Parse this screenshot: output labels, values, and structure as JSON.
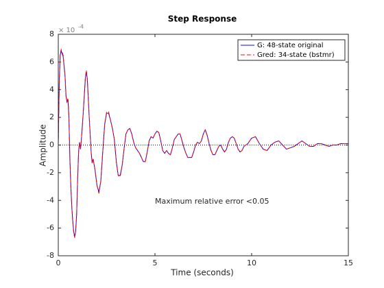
{
  "chart_data": {
    "type": "line",
    "title": "Step Response",
    "x_label": "Time (seconds)",
    "y_label": "Amplitude",
    "y_multiplier": "× 10",
    "y_exponent": "-4",
    "annotation": "Maximum relative error <0.05",
    "xlim": [
      0,
      15
    ],
    "xticks": [
      0,
      5,
      10,
      15
    ],
    "ylim": [
      -8,
      8
    ],
    "yticks": [
      -8,
      -6,
      -4,
      -2,
      0,
      2,
      4,
      6,
      8
    ],
    "zero_line": true,
    "legend": "northeast",
    "x": [
      0,
      0.05,
      0.1,
      0.15,
      0.25,
      0.35,
      0.4,
      0.45,
      0.5,
      0.55,
      0.6,
      0.65,
      0.7,
      0.75,
      0.8,
      0.85,
      0.9,
      0.95,
      1.0,
      1.05,
      1.1,
      1.15,
      1.2,
      1.3,
      1.4,
      1.45,
      1.5,
      1.6,
      1.7,
      1.75,
      1.8,
      1.9,
      2.0,
      2.1,
      2.2,
      2.3,
      2.4,
      2.5,
      2.6,
      2.7,
      2.8,
      2.9,
      3.0,
      3.1,
      3.2,
      3.3,
      3.4,
      3.5,
      3.6,
      3.7,
      3.8,
      3.9,
      4.0,
      4.1,
      4.2,
      4.3,
      4.4,
      4.5,
      4.6,
      4.7,
      4.8,
      4.9,
      5.0,
      5.1,
      5.2,
      5.3,
      5.4,
      5.5,
      5.6,
      5.7,
      5.8,
      5.9,
      6.0,
      6.1,
      6.2,
      6.3,
      6.4,
      6.5,
      6.6,
      6.7,
      6.8,
      6.9,
      7.0,
      7.1,
      7.2,
      7.3,
      7.4,
      7.5,
      7.6,
      7.7,
      7.8,
      7.9,
      8.0,
      8.1,
      8.2,
      8.3,
      8.4,
      8.5,
      8.6,
      8.7,
      8.8,
      8.9,
      9.0,
      9.1,
      9.2,
      9.3,
      9.4,
      9.5,
      9.6,
      9.7,
      9.8,
      9.9,
      10.0,
      10.2,
      10.4,
      10.6,
      10.8,
      11.0,
      11.2,
      11.4,
      11.6,
      11.8,
      12.0,
      12.2,
      12.4,
      12.6,
      12.8,
      13.0,
      13.2,
      13.4,
      13.6,
      13.8,
      14.0,
      14.2,
      14.4,
      14.6,
      14.8,
      15.0
    ],
    "series": [
      {
        "name": "G: 48-state original",
        "color": "#0000ff",
        "linestyle": "solid",
        "values": [
          0,
          4.5,
          6.5,
          6.8,
          6.4,
          5.0,
          3.5,
          3.1,
          3.3,
          2.0,
          -1,
          -3,
          -4.5,
          -5.5,
          -6.3,
          -6.6,
          -6.2,
          -5,
          -2.5,
          -0.5,
          0.2,
          -0.3,
          0.5,
          2.5,
          4.8,
          5.3,
          4.8,
          2.0,
          -0.5,
          -1.3,
          -1.0,
          -1.8,
          -2.9,
          -3.4,
          -2.6,
          -0.5,
          1.5,
          2.3,
          2.3,
          1.8,
          1.2,
          0.4,
          -1.2,
          -2.2,
          -2.2,
          -1.5,
          -0.3,
          0.8,
          1.1,
          1.2,
          0.8,
          0.2,
          -0.2,
          -0.4,
          -0.6,
          -0.9,
          -1.2,
          -1.2,
          -0.5,
          0.3,
          0.6,
          0.5,
          0.8,
          1.0,
          0.9,
          0.3,
          -0.4,
          -0.6,
          -0.4,
          -0.6,
          -0.7,
          -0.2,
          0.4,
          0.6,
          0.8,
          0.8,
          0.3,
          -0.2,
          -0.6,
          -0.9,
          -0.9,
          -0.9,
          -0.5,
          0.0,
          0.2,
          0.1,
          0.3,
          0.8,
          1.1,
          0.7,
          0.1,
          -0.4,
          -0.7,
          -0.7,
          -0.4,
          -0.1,
          0.0,
          -0.3,
          -0.5,
          -0.3,
          0.2,
          0.5,
          0.6,
          0.5,
          0.1,
          -0.3,
          -0.5,
          -0.4,
          -0.1,
          0.0,
          0.1,
          0.3,
          0.5,
          0.6,
          0.1,
          -0.3,
          -0.4,
          0.0,
          0.2,
          0.3,
          0.0,
          -0.3,
          -0.2,
          -0.1,
          0.1,
          0.3,
          0.1,
          -0.1,
          -0.1,
          0.1,
          0.1,
          0.0,
          -0.1,
          0.0,
          0.0,
          0.1,
          0.1,
          0.1
        ]
      },
      {
        "name": "Gred: 34-state (bstmr)",
        "color": "#ff0000",
        "linestyle": "dashed",
        "values": [
          0,
          4.4,
          6.6,
          6.9,
          6.5,
          5.0,
          3.6,
          3.1,
          3.4,
          2.0,
          -1,
          -3,
          -4.5,
          -5.6,
          -6.4,
          -6.7,
          -6.2,
          -5,
          -2.5,
          -0.5,
          0.2,
          -0.3,
          0.5,
          2.6,
          4.9,
          5.4,
          4.8,
          2.0,
          -0.5,
          -1.3,
          -1.0,
          -1.8,
          -2.9,
          -3.5,
          -2.6,
          -0.5,
          1.5,
          2.4,
          2.4,
          1.8,
          1.2,
          0.4,
          -1.2,
          -2.2,
          -2.3,
          -1.5,
          -0.3,
          0.8,
          1.1,
          1.2,
          0.8,
          0.2,
          -0.2,
          -0.4,
          -0.6,
          -0.9,
          -1.2,
          -1.2,
          -0.5,
          0.3,
          0.6,
          0.5,
          0.8,
          1.0,
          0.9,
          0.3,
          -0.4,
          -0.6,
          -0.4,
          -0.6,
          -0.7,
          -0.2,
          0.4,
          0.6,
          0.8,
          0.8,
          0.3,
          -0.2,
          -0.6,
          -0.9,
          -0.9,
          -0.9,
          -0.5,
          0.0,
          0.2,
          0.1,
          0.3,
          0.8,
          1.1,
          0.7,
          0.1,
          -0.4,
          -0.7,
          -0.7,
          -0.4,
          -0.1,
          0.0,
          -0.3,
          -0.5,
          -0.3,
          0.2,
          0.5,
          0.6,
          0.5,
          0.1,
          -0.3,
          -0.5,
          -0.4,
          -0.1,
          0.0,
          0.1,
          0.3,
          0.5,
          0.6,
          0.1,
          -0.3,
          -0.4,
          0.0,
          0.2,
          0.3,
          0.0,
          -0.3,
          -0.2,
          -0.1,
          0.1,
          0.3,
          0.1,
          -0.1,
          -0.1,
          0.1,
          0.1,
          0.0,
          -0.1,
          0.0,
          0.0,
          0.1,
          0.1,
          0.1
        ]
      }
    ]
  }
}
